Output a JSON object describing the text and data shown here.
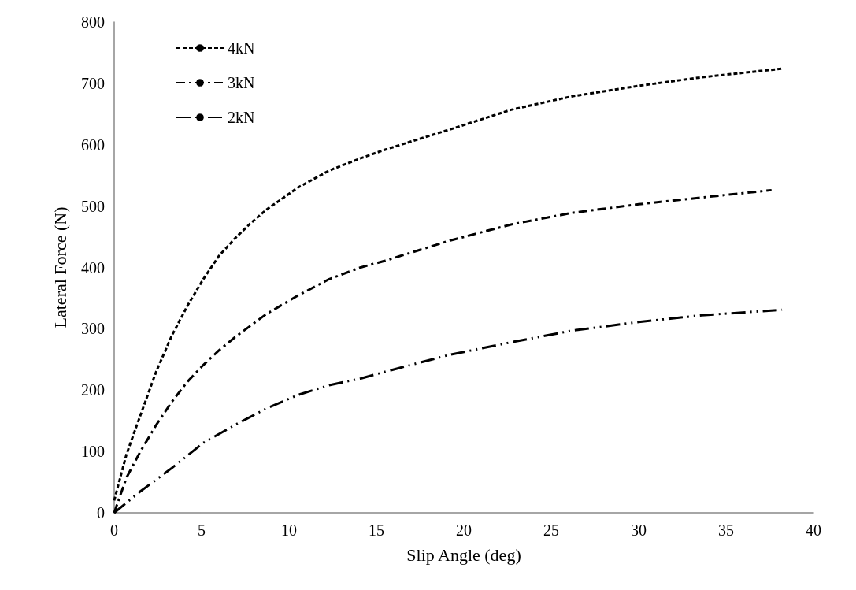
{
  "chart_data": {
    "type": "line",
    "xlabel": "Slip Angle (deg)",
    "ylabel": "Lateral Force (N)",
    "xlim": [
      0,
      40
    ],
    "xticks": [
      0,
      5,
      10,
      15,
      20,
      25,
      30,
      35,
      40
    ],
    "ylim": [
      0,
      800
    ],
    "yticks": [
      0,
      100,
      200,
      300,
      400,
      500,
      600,
      700,
      800
    ],
    "grid": false,
    "legend": "top left",
    "marker": "none",
    "series": [
      {
        "name": "4kN",
        "color": "#000000",
        "line_style": "dashed",
        "x": [
          0,
          0.7,
          1.5,
          2.4,
          3.3,
          4.2,
          5.1,
          6,
          6.9,
          7.8,
          8.7,
          10.5,
          12.3,
          14.1,
          15.5,
          19.1,
          22.7,
          26.2,
          30,
          33.6,
          38.2
        ],
        "values": [
          20,
          95,
          159,
          230,
          289,
          338,
          381,
          419,
          447,
          472,
          494,
          530,
          558,
          578,
          592,
          624,
          657,
          679,
          696,
          710,
          724
        ]
      },
      {
        "name": "3kN",
        "color": "#000000",
        "line_style": "dashed",
        "x": [
          0,
          0.7,
          1.5,
          2.4,
          3.3,
          4.2,
          5.1,
          6,
          6.9,
          7.8,
          8.7,
          10.5,
          12.3,
          14.1,
          15.5,
          19.1,
          22.7,
          26.2,
          30,
          33.6,
          37.6
        ],
        "values": [
          0,
          57,
          100,
          143,
          181,
          214,
          241,
          265,
          286,
          305,
          324,
          354,
          381,
          400,
          411,
          443,
          470,
          489,
          503,
          514,
          526
        ]
      },
      {
        "name": "2kN",
        "color": "#000000",
        "line_style": "dashed",
        "x": [
          0,
          1.5,
          3.3,
          5.1,
          6.9,
          8.7,
          10.5,
          12.3,
          14.1,
          15.5,
          19.1,
          22.7,
          26.2,
          30,
          33.6,
          38.2
        ],
        "values": [
          0,
          35,
          73,
          114,
          143,
          170,
          192,
          208,
          219,
          230,
          257,
          278,
          297,
          311,
          322,
          331
        ]
      }
    ]
  }
}
